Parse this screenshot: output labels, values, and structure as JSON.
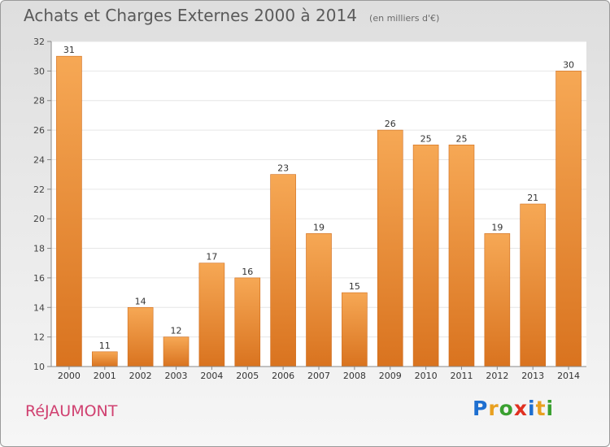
{
  "header": {
    "title": "Achats et Charges Externes 2000 à 2014",
    "unit": "(en milliers d'€)"
  },
  "footer": {
    "commune": "RéJAUMONT",
    "logo": {
      "text": "Proxiti",
      "letters": [
        "P",
        "r",
        "o",
        "x",
        "i",
        "t",
        "i"
      ],
      "colors": [
        "#1e6fd0",
        "#e8a020",
        "#3aa030",
        "#e03020",
        "#1e6fd0",
        "#e8a020",
        "#3aa030"
      ]
    }
  },
  "colors": {
    "bar_top": "#f6a855",
    "bar_bottom": "#d9731f",
    "bar_edge": "#cf6c1c",
    "title": "#5a5a5a",
    "commune": "#d04070",
    "plot_background": "#ffffff",
    "grid": "#e6e6e6"
  },
  "chart_data": {
    "type": "bar",
    "categories": [
      "2000",
      "2001",
      "2002",
      "2003",
      "2004",
      "2005",
      "2006",
      "2007",
      "2008",
      "2009",
      "2010",
      "2011",
      "2012",
      "2013",
      "2014"
    ],
    "values": [
      31,
      11,
      14,
      12,
      17,
      16,
      23,
      19,
      15,
      26,
      25,
      25,
      19,
      21,
      30
    ],
    "ylim": [
      10,
      32
    ],
    "yticks": [
      10,
      12,
      14,
      16,
      18,
      20,
      22,
      24,
      26,
      28,
      30,
      32
    ],
    "grid": true,
    "value_labels": true,
    "legend": "none"
  }
}
